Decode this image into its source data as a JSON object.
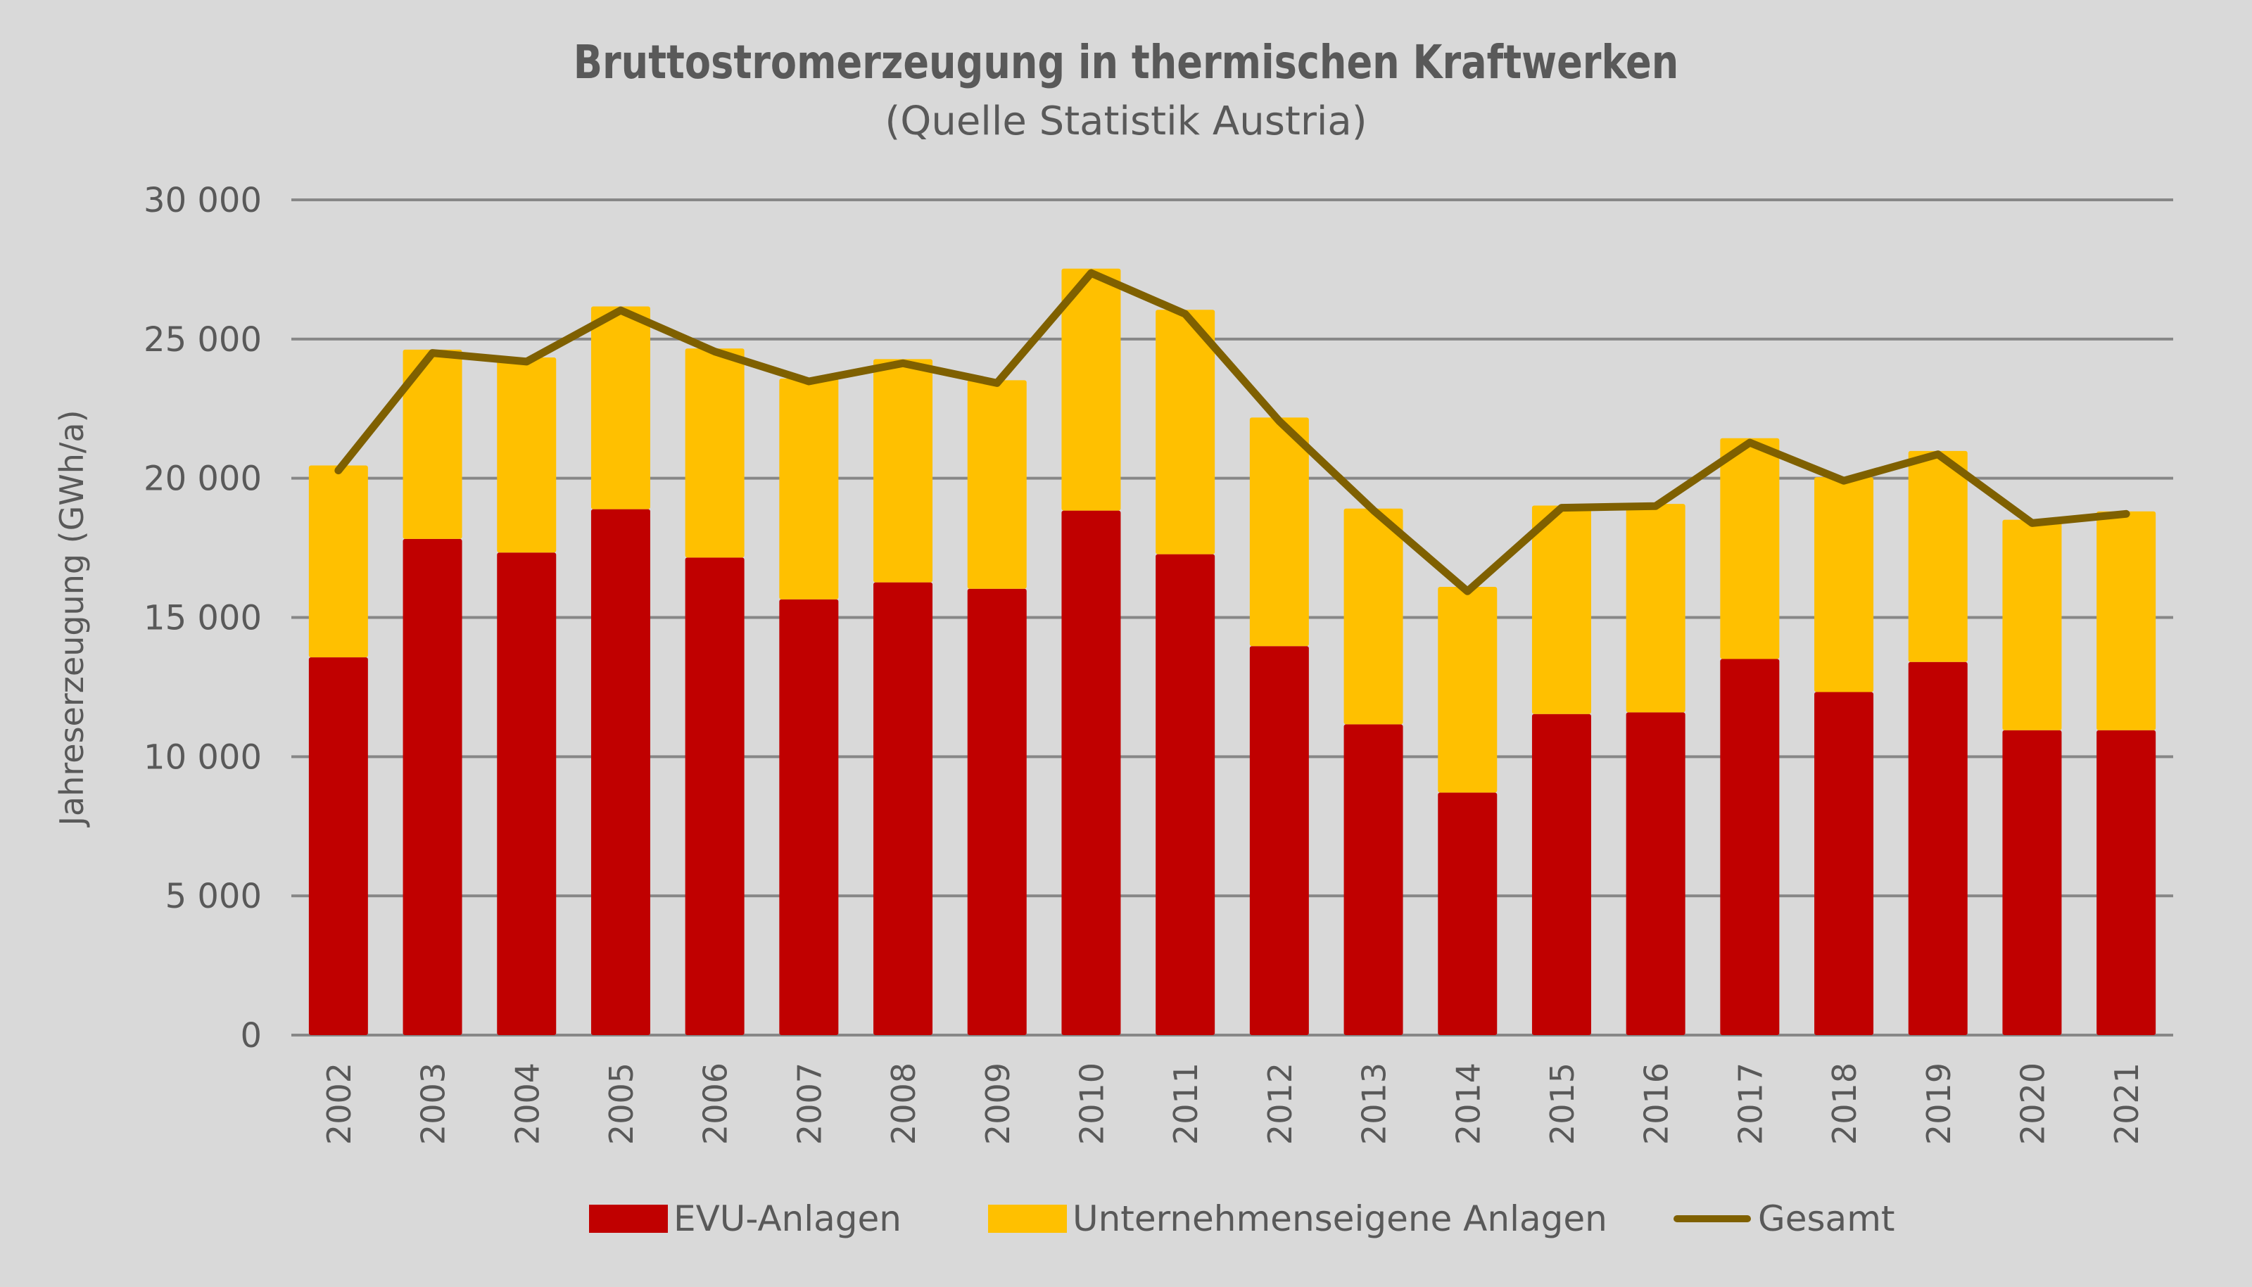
{
  "chart_data": {
    "type": "bar",
    "stacked": true,
    "title": "Bruttostromerzeugung in thermischen Kraftwerken",
    "subtitle": "(Quelle Statistik Austria)",
    "xlabel": "",
    "ylabel": "Jahreserzeugung (GWh/a)",
    "ylim": [
      0,
      30000
    ],
    "yticks": [
      0,
      5000,
      10000,
      15000,
      20000,
      25000,
      30000
    ],
    "ytick_labels": [
      "0",
      "5 000",
      "10 000",
      "15 000",
      "20 000",
      "25 000",
      "30 000"
    ],
    "grid": true,
    "legend_position": "bottom",
    "categories": [
      "2002",
      "2003",
      "2004",
      "2005",
      "2006",
      "2007",
      "2008",
      "2009",
      "2010",
      "2011",
      "2012",
      "2013",
      "2014",
      "2015",
      "2016",
      "2017",
      "2018",
      "2019",
      "2020",
      "2021"
    ],
    "series": [
      {
        "name": "EVU-Anlagen",
        "type": "bar",
        "color": "#C00000",
        "values": [
          13570,
          17820,
          17330,
          18890,
          17150,
          15650,
          16260,
          16030,
          18840,
          17270,
          13970,
          11160,
          8710,
          11530,
          11590,
          13510,
          12320,
          13400,
          10950,
          10950
        ]
      },
      {
        "name": "Unternehmenseigene Anlagen",
        "type": "bar",
        "color": "#FFC000",
        "values": [
          6890,
          6800,
          7010,
          7280,
          7510,
          7930,
          8020,
          7490,
          8690,
          8780,
          8210,
          7750,
          7390,
          7490,
          7490,
          7930,
          7720,
          7580,
          7560,
          7860
        ]
      },
      {
        "name": "Gesamt",
        "type": "line",
        "color": "#7F6000",
        "values": [
          20280,
          24500,
          24190,
          26030,
          24550,
          23480,
          24130,
          23420,
          27370,
          25900,
          22050,
          18850,
          15940,
          18940,
          19000,
          21280,
          19910,
          20860,
          18390,
          18720
        ]
      }
    ]
  }
}
